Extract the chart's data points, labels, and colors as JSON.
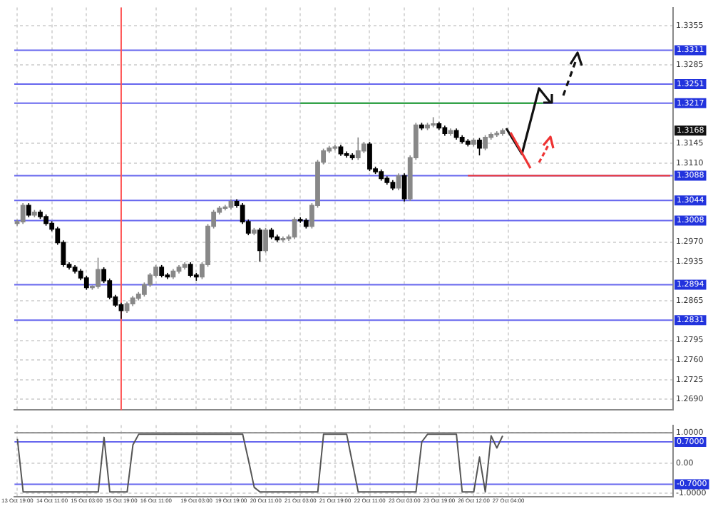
{
  "chart_data": [
    {
      "type": "candlestick",
      "ylim": [
        1.2671,
        1.3387
      ],
      "categories": [
        "13 Oct 19:00",
        null,
        null,
        null,
        null,
        null,
        "14 Oct 11:00",
        null,
        null,
        null,
        null,
        null,
        "15 Oct 03:00",
        null,
        null,
        null,
        null,
        null,
        "15 Oct 19:00",
        null,
        null,
        null,
        null,
        null,
        "16 Oct 11:00",
        null,
        null,
        null,
        null,
        null,
        null,
        "19 Oct 03:00",
        null,
        null,
        null,
        null,
        null,
        "19 Oct 19:00",
        null,
        null,
        null,
        null,
        null,
        "20 Oct 11:00",
        null,
        null,
        null,
        null,
        null,
        "21 Oct 03:00",
        null,
        null,
        null,
        null,
        null,
        "21 Oct 19:00",
        null,
        null,
        null,
        null,
        null,
        "22 Oct 11:00",
        null,
        null,
        null,
        null,
        null,
        "23 Oct 03:00",
        null,
        null,
        null,
        null,
        null,
        "23 Oct 19:00",
        null,
        null,
        null,
        null,
        null,
        "26 Oct 12:00",
        null,
        null,
        null,
        null,
        null,
        "27 Oct 04:00",
        null,
        null,
        null,
        null,
        null,
        null,
        null,
        null,
        null,
        null,
        null,
        null,
        null,
        null,
        null,
        null,
        null,
        null,
        null,
        null,
        null,
        null,
        null,
        null,
        null,
        null,
        null,
        null
      ],
      "yticks": [
        {
          "value": 1.269,
          "label": "1.2690"
        },
        {
          "value": 1.2725,
          "label": "1.2725"
        },
        {
          "value": 1.276,
          "label": "1.2760"
        },
        {
          "value": 1.2795,
          "label": "1.2795"
        },
        {
          "value": 1.2865,
          "label": "1.2865"
        },
        {
          "value": 1.2935,
          "label": "1.2935"
        },
        {
          "value": 1.297,
          "label": "1.2970"
        },
        {
          "value": 1.311,
          "label": "1.3110"
        },
        {
          "value": 1.3145,
          "label": "1.3145"
        },
        {
          "value": 1.3285,
          "label": "1.3285"
        },
        {
          "value": 1.3355,
          "label": "1.3355"
        }
      ],
      "tick_labels": "y",
      "grid": true,
      "colors": [
        "#888888",
        "#888888",
        "#000000",
        "#888888",
        "#000000",
        "#000000",
        "#000000",
        "#000000",
        "#000000",
        "#000000",
        "#000000",
        "#000000",
        "#000000",
        "#888888",
        "#888888",
        "#000000",
        "#000000",
        "#000000",
        "#000000",
        "#888888",
        "#888888",
        "#888888",
        "#888888",
        "#888888",
        "#888888",
        "#000000",
        "#000000",
        "#888888",
        "#888888",
        "#888888",
        "#000000",
        "#000000",
        "#888888",
        "#888888",
        "#888888",
        "#888888",
        "#888888",
        "#888888",
        "#000000",
        "#000000",
        "#000000",
        "#888888",
        "#000000",
        "#888888",
        "#000000",
        "#000000",
        "#888888",
        "#888888",
        "#888888",
        "#000000",
        "#000000",
        "#888888",
        "#888888",
        "#888888",
        "#888888",
        "#888888",
        "#000000",
        "#000000",
        "#000000",
        "#888888",
        "#888888",
        "#000000",
        "#000000",
        "#000000",
        "#000000",
        "#000000",
        "#888888",
        "#000000",
        "#888888",
        "#888888",
        "#000000",
        "#888888",
        "#888888",
        "#000000",
        "#000000",
        "#888888",
        "#000000",
        "#000000",
        "#000000",
        "#888888",
        "#000000",
        "#888888",
        "#888888",
        "#888888",
        "#888888",
        null,
        null,
        null,
        null,
        null,
        null,
        null,
        null,
        null,
        null,
        null,
        null,
        null,
        null,
        null,
        null,
        null,
        null,
        null,
        null,
        null,
        null,
        null,
        null,
        null,
        null,
        null,
        null,
        null
      ],
      "ohlc": [
        [
          1.3003,
          1.301,
          1.2999,
          1.3006
        ],
        [
          1.3006,
          1.3039,
          1.3002,
          1.3035
        ],
        [
          1.3035,
          1.3039,
          1.3014,
          1.3018
        ],
        [
          1.3018,
          1.3027,
          1.3014,
          1.3023
        ],
        [
          1.3023,
          1.3027,
          1.3011,
          1.3015
        ],
        [
          1.3015,
          1.3019,
          1.2999,
          1.3003
        ],
        [
          1.3003,
          1.3007,
          1.2989,
          1.2993
        ],
        [
          1.2993,
          1.2997,
          1.2965,
          1.2969
        ],
        [
          1.2969,
          1.2973,
          1.2926,
          1.293
        ],
        [
          1.293,
          1.2934,
          1.2921,
          1.2925
        ],
        [
          1.2925,
          1.2929,
          1.2914,
          1.2918
        ],
        [
          1.2918,
          1.2922,
          1.2902,
          1.2906
        ],
        [
          1.2906,
          1.291,
          1.2885,
          1.2889
        ],
        [
          1.2889,
          1.2893,
          1.2885,
          1.2891
        ],
        [
          1.2891,
          1.2942,
          1.2887,
          1.2921
        ],
        [
          1.2921,
          1.2925,
          1.2897,
          1.2901
        ],
        [
          1.2901,
          1.2905,
          1.2868,
          1.2872
        ],
        [
          1.2872,
          1.2876,
          1.2854,
          1.2858
        ],
        [
          1.2858,
          1.2862,
          1.2833,
          1.2848
        ],
        [
          1.2848,
          1.2864,
          1.2844,
          1.286
        ],
        [
          1.286,
          1.2874,
          1.2856,
          1.287
        ],
        [
          1.287,
          1.2881,
          1.2866,
          1.2877
        ],
        [
          1.2877,
          1.2898,
          1.2873,
          1.2894
        ],
        [
          1.2894,
          1.2915,
          1.289,
          1.2911
        ],
        [
          1.2911,
          1.2929,
          1.2907,
          1.2925
        ],
        [
          1.2925,
          1.2929,
          1.2907,
          1.2911
        ],
        [
          1.2911,
          1.2915,
          1.2904,
          1.2908
        ],
        [
          1.2908,
          1.2922,
          1.2904,
          1.2918
        ],
        [
          1.2918,
          1.2929,
          1.2914,
          1.2925
        ],
        [
          1.2925,
          1.2934,
          1.2921,
          1.293
        ],
        [
          1.293,
          1.2934,
          1.2907,
          1.2911
        ],
        [
          1.2911,
          1.2915,
          1.2901,
          1.2908
        ],
        [
          1.2908,
          1.2934,
          1.2904,
          1.293
        ],
        [
          1.293,
          1.3002,
          1.2926,
          1.2998
        ],
        [
          1.2998,
          1.3027,
          1.2994,
          1.3023
        ],
        [
          1.3023,
          1.3034,
          1.3019,
          1.303
        ],
        [
          1.303,
          1.3036,
          1.3026,
          1.3032
        ],
        [
          1.3032,
          1.3046,
          1.3028,
          1.3042
        ],
        [
          1.3042,
          1.3046,
          1.3031,
          1.3035
        ],
        [
          1.3035,
          1.3039,
          1.3002,
          1.3006
        ],
        [
          1.3006,
          1.301,
          1.2982,
          1.2986
        ],
        [
          1.2986,
          1.2995,
          1.2982,
          1.2991
        ],
        [
          1.2991,
          1.2995,
          1.2935,
          1.2955
        ],
        [
          1.2955,
          1.2995,
          1.2951,
          1.2991
        ],
        [
          1.2991,
          1.2995,
          1.2975,
          1.2979
        ],
        [
          1.2979,
          1.2983,
          1.297,
          1.2974
        ],
        [
          1.2974,
          1.298,
          1.297,
          1.2976
        ],
        [
          1.2976,
          1.2983,
          1.2972,
          1.2979
        ],
        [
          1.2979,
          1.3014,
          1.2975,
          1.301
        ],
        [
          1.301,
          1.3014,
          1.3004,
          1.3008
        ],
        [
          1.3008,
          1.3012,
          1.2994,
          1.2998
        ],
        [
          1.2998,
          1.3039,
          1.2994,
          1.3035
        ],
        [
          1.3035,
          1.3116,
          1.3031,
          1.3112
        ],
        [
          1.3112,
          1.3136,
          1.3108,
          1.3132
        ],
        [
          1.3132,
          1.3141,
          1.3128,
          1.3137
        ],
        [
          1.3137,
          1.3143,
          1.3133,
          1.3139
        ],
        [
          1.3139,
          1.3143,
          1.3123,
          1.3127
        ],
        [
          1.3127,
          1.3131,
          1.312,
          1.3124
        ],
        [
          1.3124,
          1.3128,
          1.3116,
          1.312
        ],
        [
          1.312,
          1.3156,
          1.3116,
          1.3132
        ],
        [
          1.3132,
          1.3148,
          1.3128,
          1.3144
        ],
        [
          1.3144,
          1.3148,
          1.3096,
          1.31
        ],
        [
          1.31,
          1.3104,
          1.3091,
          1.3095
        ],
        [
          1.3095,
          1.3099,
          1.3079,
          1.3083
        ],
        [
          1.3083,
          1.3087,
          1.3072,
          1.3076
        ],
        [
          1.3076,
          1.308,
          1.3062,
          1.3066
        ],
        [
          1.3066,
          1.3092,
          1.3062,
          1.3088
        ],
        [
          1.3088,
          1.3092,
          1.3042,
          1.3047
        ],
        [
          1.3047,
          1.3124,
          1.3043,
          1.312
        ],
        [
          1.312,
          1.3182,
          1.3116,
          1.3178
        ],
        [
          1.3178,
          1.3182,
          1.3169,
          1.3173
        ],
        [
          1.3173,
          1.3182,
          1.3169,
          1.3178
        ],
        [
          1.3178,
          1.3192,
          1.3174,
          1.318
        ],
        [
          1.318,
          1.3184,
          1.3169,
          1.3173
        ],
        [
          1.3173,
          1.3177,
          1.3159,
          1.3163
        ],
        [
          1.3163,
          1.3172,
          1.3159,
          1.3168
        ],
        [
          1.3168,
          1.3172,
          1.3152,
          1.3156
        ],
        [
          1.3156,
          1.316,
          1.3145,
          1.3149
        ],
        [
          1.3149,
          1.3153,
          1.314,
          1.3144
        ],
        [
          1.3144,
          1.3155,
          1.314,
          1.3151
        ],
        [
          1.3151,
          1.3155,
          1.3124,
          1.3137
        ],
        [
          1.3137,
          1.316,
          1.3133,
          1.3156
        ],
        [
          1.3156,
          1.3165,
          1.3152,
          1.3161
        ],
        [
          1.3161,
          1.3167,
          1.3157,
          1.3163
        ],
        [
          1.3163,
          1.3172,
          1.3159,
          1.3168
        ],
        null,
        null,
        null,
        null,
        null,
        null,
        null,
        null,
        null,
        null,
        null,
        null,
        null,
        null,
        null,
        null,
        null,
        null,
        null,
        null,
        null,
        null,
        null,
        null,
        null,
        null,
        null,
        null,
        null
      ],
      "series": [
        {
          "type": "line",
          "color": "#22aa22",
          "values": [
            null,
            null,
            null,
            null,
            null,
            null,
            null,
            null,
            null,
            null,
            null,
            null,
            null,
            null,
            null,
            null,
            null,
            null,
            null,
            null,
            null,
            null,
            null,
            null,
            null,
            null,
            null,
            null,
            null,
            null,
            null,
            null,
            null,
            null,
            null,
            null,
            null,
            null,
            null,
            null,
            null,
            null,
            null,
            null,
            null,
            null,
            null,
            null,
            null,
            1.3217,
            1.3217,
            1.3217,
            1.3217,
            1.3217,
            1.3217,
            1.3217,
            1.3217,
            1.3217,
            1.3217,
            1.3217,
            1.3217,
            1.3217,
            1.3217,
            1.3217,
            1.3217,
            1.3217,
            1.3217,
            1.3217,
            1.3217,
            1.3217,
            1.3217,
            1.3217,
            1.3217,
            1.3217,
            1.3217,
            1.3217,
            1.3217,
            1.3217,
            1.3217,
            1.3217,
            1.3217,
            1.3217,
            1.3217,
            1.3217,
            1.3217,
            1.3217,
            1.3217,
            1.3217,
            1.3217,
            1.3217,
            1.3217,
            1.3217,
            null,
            null,
            null,
            null,
            null,
            null,
            null,
            null,
            null,
            null,
            null,
            null,
            null,
            null,
            null,
            null,
            null,
            null,
            null,
            null,
            null,
            null
          ]
        },
        {
          "type": "line",
          "color": "#ee3333",
          "values": [
            null,
            null,
            null,
            null,
            null,
            null,
            null,
            null,
            null,
            null,
            null,
            null,
            null,
            null,
            null,
            null,
            null,
            null,
            null,
            null,
            null,
            null,
            null,
            null,
            null,
            null,
            null,
            null,
            null,
            null,
            null,
            null,
            null,
            null,
            null,
            null,
            null,
            null,
            null,
            null,
            null,
            null,
            null,
            null,
            null,
            null,
            null,
            null,
            null,
            null,
            null,
            null,
            null,
            null,
            null,
            null,
            null,
            null,
            null,
            null,
            null,
            null,
            null,
            null,
            null,
            null,
            null,
            null,
            null,
            null,
            null,
            null,
            null,
            null,
            null,
            null,
            null,
            null,
            1.3088,
            1.3088,
            1.3088,
            1.3088,
            1.3088,
            1.3088,
            1.3088,
            1.3088,
            1.3088,
            1.3088,
            1.3088,
            1.3088,
            1.3088,
            1.3088,
            1.3088,
            1.3088,
            1.3088,
            1.3088,
            1.3088,
            1.3088,
            1.3088,
            1.3088,
            1.3088,
            1.3088,
            1.3088,
            1.3088,
            1.3088,
            1.3088,
            1.3088,
            1.3088,
            1.3088,
            1.3088,
            1.3088,
            1.3088,
            1.3088,
            1.3088
          ]
        }
      ],
      "ref_lines": [
        {
          "axis": "y",
          "value": 1.3311,
          "label": "1.3311",
          "color": "#6666ee"
        },
        {
          "axis": "y",
          "value": 1.3251,
          "label": "1.3251",
          "color": "#6666ee"
        },
        {
          "axis": "y",
          "value": 1.3217,
          "label": "1.3217",
          "color": "#6666ee"
        },
        {
          "axis": "y",
          "value": 1.3088,
          "label": "1.3088",
          "color": "#6666ee"
        },
        {
          "axis": "y",
          "value": 1.3044,
          "label": "1.3044",
          "color": "#6666ee"
        },
        {
          "axis": "y",
          "value": 1.3008,
          "label": "1.3008",
          "color": "#6666ee"
        },
        {
          "axis": "y",
          "value": 1.2894,
          "label": "1.2894",
          "color": "#6666ee"
        },
        {
          "axis": "y",
          "value": 1.2831,
          "label": "1.2831",
          "color": "#6666ee"
        },
        {
          "axis": "x",
          "value": "15 Oct 19:00",
          "color": "#ff5555"
        }
      ],
      "annotations": [
        "1.3168"
      ]
    },
    {
      "type": "line",
      "ylim": [
        -1.1,
        1.25
      ],
      "categories": [
        "13 Oct 19:00",
        null,
        null,
        null,
        null,
        null,
        "14 Oct 11:00",
        null,
        null,
        null,
        null,
        null,
        "15 Oct 03:00",
        null,
        null,
        null,
        null,
        null,
        "15 Oct 19:00",
        null,
        null,
        null,
        null,
        null,
        "16 Oct 11:00",
        null,
        null,
        null,
        null,
        null,
        null,
        "19 Oct 03:00",
        null,
        null,
        null,
        null,
        null,
        "19 Oct 19:00",
        null,
        null,
        null,
        null,
        null,
        "20 Oct 11:00",
        null,
        null,
        null,
        null,
        null,
        "21 Oct 03:00",
        null,
        null,
        null,
        null,
        null,
        "21 Oct 19:00",
        null,
        null,
        null,
        null,
        null,
        "22 Oct 11:00",
        null,
        null,
        null,
        null,
        null,
        "23 Oct 03:00",
        null,
        null,
        null,
        null,
        null,
        "23 Oct 19:00",
        null,
        null,
        null,
        null,
        null,
        "26 Oct 12:00",
        null,
        null,
        null,
        null,
        null,
        "27 Oct 04:00",
        null,
        null,
        null,
        null,
        null,
        null,
        null,
        null,
        null,
        null,
        null,
        null,
        null,
        null,
        null,
        null,
        null,
        null,
        null,
        null,
        null,
        null,
        null,
        null,
        null,
        null,
        null,
        null
      ],
      "yticks": [
        {
          "value": 1,
          "label": "1.0000"
        },
        {
          "value": 0,
          "label": "0.00"
        },
        {
          "value": -1,
          "label": "-1.0000"
        }
      ],
      "grid": true,
      "series": [
        {
          "color": "#555555",
          "values": [
            0.8,
            -0.95,
            -0.95,
            -0.95,
            -0.95,
            -0.95,
            -0.95,
            -0.95,
            -0.95,
            -0.95,
            -0.95,
            -0.95,
            -0.95,
            -0.95,
            -0.95,
            0.85,
            -0.95,
            -0.95,
            -0.95,
            -0.95,
            0.6,
            0.95,
            0.95,
            0.95,
            0.95,
            0.95,
            0.95,
            0.95,
            0.95,
            0.95,
            0.95,
            0.95,
            0.95,
            0.95,
            0.95,
            0.95,
            0.95,
            0.95,
            0.95,
            0.95,
            0.1,
            -0.8,
            -0.95,
            -0.95,
            -0.95,
            -0.95,
            -0.95,
            -0.95,
            -0.95,
            -0.95,
            -0.95,
            -0.95,
            -0.95,
            0.95,
            0.95,
            0.95,
            0.95,
            0.95,
            0,
            -0.95,
            -0.95,
            -0.95,
            -0.95,
            -0.95,
            -0.95,
            -0.95,
            -0.95,
            -0.95,
            -0.95,
            -0.95,
            0.7,
            0.95,
            0.95,
            0.95,
            0.95,
            0.95,
            0.95,
            -0.95,
            -0.95,
            -0.95,
            0.2,
            -0.95,
            0.9,
            0.5,
            0.9,
            null,
            null,
            null,
            null,
            null,
            null,
            null,
            null,
            null,
            null,
            null,
            null,
            null,
            null,
            null,
            null,
            null,
            null,
            null,
            null,
            null,
            null,
            null,
            null,
            null,
            null,
            null,
            null,
            null
          ]
        }
      ],
      "ref_lines": [
        {
          "axis": "y",
          "value": 1,
          "color": "#888888"
        },
        {
          "axis": "y",
          "value": 0.7,
          "label": "0.7000",
          "color": "#6666ee"
        },
        {
          "axis": "y",
          "value": -0.7,
          "label": "-0.7000",
          "color": "#6666ee"
        }
      ]
    }
  ]
}
